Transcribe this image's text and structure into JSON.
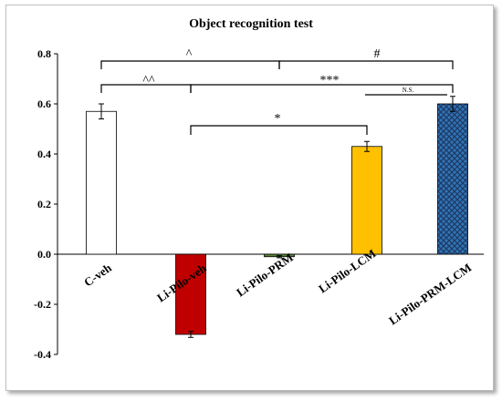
{
  "chart_data": {
    "type": "bar",
    "title": "Object recognition test",
    "xlabel": "",
    "ylabel": "",
    "ylim": [
      -0.4,
      0.8
    ],
    "yticks": [
      "-0.4",
      "-0.2",
      "0.0",
      "0.2",
      "0.4",
      "0.6",
      "0.8"
    ],
    "categories": [
      "C-veh",
      "Li-Pilo-veh",
      "Li-Pilo-PRM",
      "Li-Pilo-LCM",
      "Li-Pilo-PRM-LCM"
    ],
    "values": [
      0.57,
      -0.32,
      -0.01,
      0.43,
      0.6
    ],
    "errors": [
      0.03,
      0.012,
      0.004,
      0.02,
      0.03
    ],
    "bar_colors": [
      "#ffffff",
      "#c00000",
      "#548235",
      "#ffc000",
      "#2e75b6"
    ],
    "bar_patterns": [
      "none",
      "none",
      "none",
      "none",
      "crosshatch"
    ],
    "grid": false,
    "legend": "none",
    "significance": [
      {
        "label": "^",
        "from": 0,
        "to": 2
      },
      {
        "label": "#",
        "from": 2,
        "to": 4
      },
      {
        "label": "^^",
        "from": 0,
        "to": 1
      },
      {
        "label": "***",
        "from": 1,
        "to": 4
      },
      {
        "label": "N.S.",
        "from": 3,
        "to": 4
      },
      {
        "label": "*",
        "from": 1,
        "to": 3
      }
    ]
  }
}
